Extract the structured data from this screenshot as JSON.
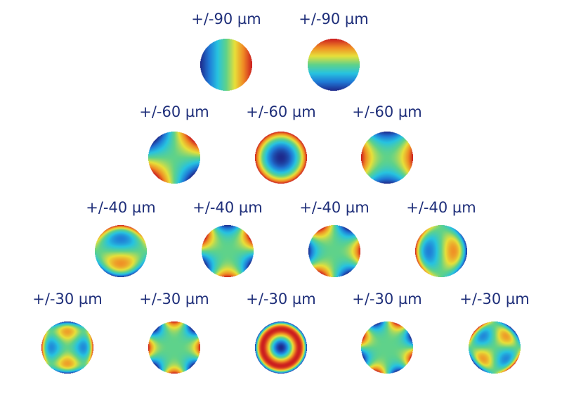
{
  "rows": [
    {
      "modes": [
        {
          "label": "+/-90 µm",
          "pattern": "tilt-x"
        },
        {
          "label": "+/-90 µm",
          "pattern": "tilt-y"
        }
      ]
    },
    {
      "modes": [
        {
          "label": "+/-60 µm",
          "pattern": "astigmatism-diagonal"
        },
        {
          "label": "+/-60 µm",
          "pattern": "defocus"
        },
        {
          "label": "+/-60 µm",
          "pattern": "astigmatism-vertical"
        }
      ]
    },
    {
      "modes": [
        {
          "label": "+/-40 µm",
          "pattern": "coma-vertical"
        },
        {
          "label": "+/-40 µm",
          "pattern": "trefoil-vertical"
        },
        {
          "label": "+/-40 µm",
          "pattern": "trefoil-oblique"
        },
        {
          "label": "+/-40 µm",
          "pattern": "coma-horizontal"
        }
      ]
    },
    {
      "modes": [
        {
          "label": "+/-30 µm",
          "pattern": "secondary-astigmatism"
        },
        {
          "label": "+/-30 µm",
          "pattern": "quadrafoil-vertical"
        },
        {
          "label": "+/-30 µm",
          "pattern": "spherical"
        },
        {
          "label": "+/-30 µm",
          "pattern": "quadrafoil-oblique"
        },
        {
          "label": "+/-30 µm",
          "pattern": "secondary-astigmatism-oblique"
        }
      ]
    }
  ],
  "colors": {
    "label": "#1f2f7a",
    "colormap": [
      "#1e2a8c",
      "#1f78d6",
      "#27c3e0",
      "#5fd28a",
      "#e7e03a",
      "#f08a24",
      "#cc1f1f"
    ]
  }
}
